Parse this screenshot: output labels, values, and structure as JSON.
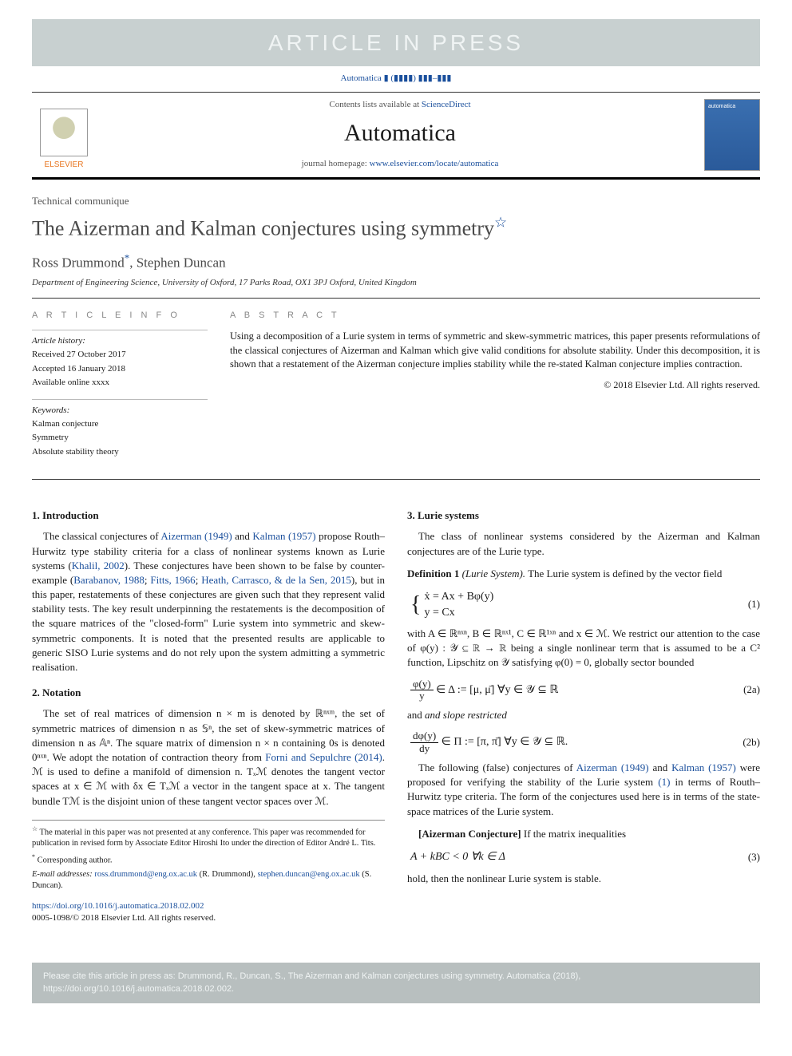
{
  "banner": "ARTICLE IN PRESS",
  "journal_ref": {
    "prefix": "Automatica",
    "issue": "▮ (▮▮▮▮) ▮▮▮–▮▮▮"
  },
  "masthead": {
    "contents_prefix": "Contents lists available at ",
    "contents_link": "ScienceDirect",
    "journal_title": "Automatica",
    "homepage_prefix": "journal homepage: ",
    "homepage_link": "www.elsevier.com/locate/automatica",
    "elsevier_label": "ELSEVIER",
    "cover_label": "automatica"
  },
  "article": {
    "type": "Technical communique",
    "title": "The Aizerman and Kalman conjectures using symmetry",
    "title_footnote_mark": "☆",
    "authors": [
      {
        "name": "Ross Drummond",
        "corr_mark": "*"
      },
      {
        "name": "Stephen Duncan",
        "corr_mark": ""
      }
    ],
    "authors_sep": ", ",
    "affiliation": "Department of Engineering Science, University of Oxford, 17 Parks Road, OX1 3PJ Oxford, United Kingdom"
  },
  "info": {
    "heading_info": "A R T I C L E   I N F O",
    "heading_abs": "A B S T R A C T",
    "history_label": "Article history:",
    "history": [
      "Received 27 October 2017",
      "Accepted 16 January 2018",
      "Available online xxxx"
    ],
    "keywords_label": "Keywords:",
    "keywords": [
      "Kalman conjecture",
      "Symmetry",
      "Absolute stability theory"
    ],
    "abstract": "Using a decomposition of a Lurie system in terms of symmetric and skew-symmetric matrices, this paper presents reformulations of the classical conjectures of Aizerman and Kalman which give valid conditions for absolute stability. Under this decomposition, it is shown that a restatement of the Aizerman conjecture implies stability while the re-stated Kalman conjecture implies contraction.",
    "copyright": "© 2018 Elsevier Ltd. All rights reserved."
  },
  "sections": {
    "s1_title": "1.  Introduction",
    "s1_p1_a": "The classical conjectures of ",
    "s1_ref1": "Aizerman (1949)",
    "s1_p1_b": " and ",
    "s1_ref2": "Kalman (1957)",
    "s1_p1_c": " propose Routh–Hurwitz type stability criteria for a class of nonlinear systems known as Lurie systems (",
    "s1_ref3": "Khalil, 2002",
    "s1_p1_d": "). These conjectures have been shown to be false by counter-example (",
    "s1_ref4": "Barabanov, 1988",
    "s1_sep1": "; ",
    "s1_ref5": "Fitts, 1966",
    "s1_sep2": "; ",
    "s1_ref6": "Heath, Carrasco, & de la Sen, 2015",
    "s1_p1_e": "), but in this paper, restatements of these conjectures are given such that they represent valid stability tests. The key result underpinning the restatements is the decomposition of the square matrices of the \"closed-form\" Lurie system into symmetric and skew-symmetric components. It is noted that the presented results are applicable to generic SISO Lurie systems and do not rely upon the system admitting a symmetric realisation.",
    "s2_title": "2.  Notation",
    "s2_p1_a": "The set of real matrices of dimension n × m is denoted by ℝⁿˣᵐ, the set of symmetric matrices of dimension n as 𝕊ⁿ, the set of skew-symmetric matrices of dimension n as 𝔸ⁿ. The square matrix of dimension n × n containing 0s is denoted 0ⁿˣⁿ. We adopt the notation of contraction theory from ",
    "s2_ref1": "Forni and Sepulchre (2014)",
    "s2_p1_b": ". ℳ is used to define a manifold of dimension n. Tₓℳ denotes the tangent vector spaces at x ∈ ℳ with δx ∈ Tₓℳ a vector in the tangent space at x. The tangent bundle Tℳ is the disjoint union of these tangent vector spaces over ℳ.",
    "s3_title": "3.  Lurie systems",
    "s3_p1": "The class of nonlinear systems considered by the Aizerman and Kalman conjectures are of the Lurie type.",
    "def1_label": "Definition 1",
    "def1_name": " (Lurie System).",
    "def1_text": "  The Lurie system is defined by the vector field",
    "eq1_l1": "ẋ = Ax + Bφ(y)",
    "eq1_l2": "y = Cx",
    "eq1_num": "(1)",
    "s3_p2": "with A ∈ ℝⁿˣⁿ, B ∈ ℝⁿˣ¹, C ∈ ℝ¹ˣⁿ and x ∈ ℳ. We restrict our attention to the case of φ(y) : 𝒴 ⊆ ℝ → ℝ being a single nonlinear term that is assumed to be a C² function, Lipschitz on 𝒴 satisfying φ(0) = 0, globally sector bounded",
    "eq2a_lhs_num": "φ(y)",
    "eq2a_lhs_den": "y",
    "eq2a_rest": " ∈ Δ := [μ, μ̄]   ∀y ∈ 𝒴 ⊆ ℝ",
    "eq2a_num": "(2a)",
    "s3_and": "and slope restricted",
    "eq2b_lhs_num": "dφ(y)",
    "eq2b_lhs_den": "dy",
    "eq2b_rest": " ∈ Π := [π, π̄]   ∀y ∈ 𝒴 ⊆ ℝ.",
    "eq2b_num": "(2b)",
    "s3_p3_a": "The following (false) conjectures of ",
    "s3_ref1": "Aizerman (1949)",
    "s3_p3_b": " and ",
    "s3_ref2": "Kalman (1957)",
    "s3_p3_c": " were proposed for verifying the stability of the Lurie system ",
    "s3_ref3": "(1)",
    "s3_p3_d": " in terms of Routh–Hurwitz type criteria. The form of the conjectures used here is in terms of the state-space matrices of the Lurie system.",
    "aiz_label": "[Aizerman Conjecture]",
    "aiz_text": " If the matrix inequalities",
    "eq3_body": "A + kBC < 0   ∀k ∈ Δ",
    "eq3_num": "(3)",
    "s3_p4": "hold, then the nonlinear Lurie system is stable."
  },
  "footnotes": {
    "f1_mark": "☆",
    "f1_text": " The material in this paper was not presented at any conference. This paper was recommended for publication in revised form by Associate Editor Hiroshi Ito under the direction of Editor André L. Tits.",
    "f2_mark": "*",
    "f2_text": " Corresponding author.",
    "email_label": "E-mail addresses: ",
    "email1": "ross.drummond@eng.ox.ac.uk",
    "email1_who": " (R. Drummond), ",
    "email2": "stephen.duncan@eng.ox.ac.uk",
    "email2_who": " (S. Duncan)."
  },
  "doi": {
    "link": "https://doi.org/10.1016/j.automatica.2018.02.002",
    "issn_line": "0005-1098/© 2018 Elsevier Ltd. All rights reserved."
  },
  "cite_footer": "Please cite this article in press as: Drummond, R., Duncan, S., The Aizerman and Kalman conjectures using symmetry. Automatica (2018), https://doi.org/10.1016/j.automatica.2018.02.002."
}
